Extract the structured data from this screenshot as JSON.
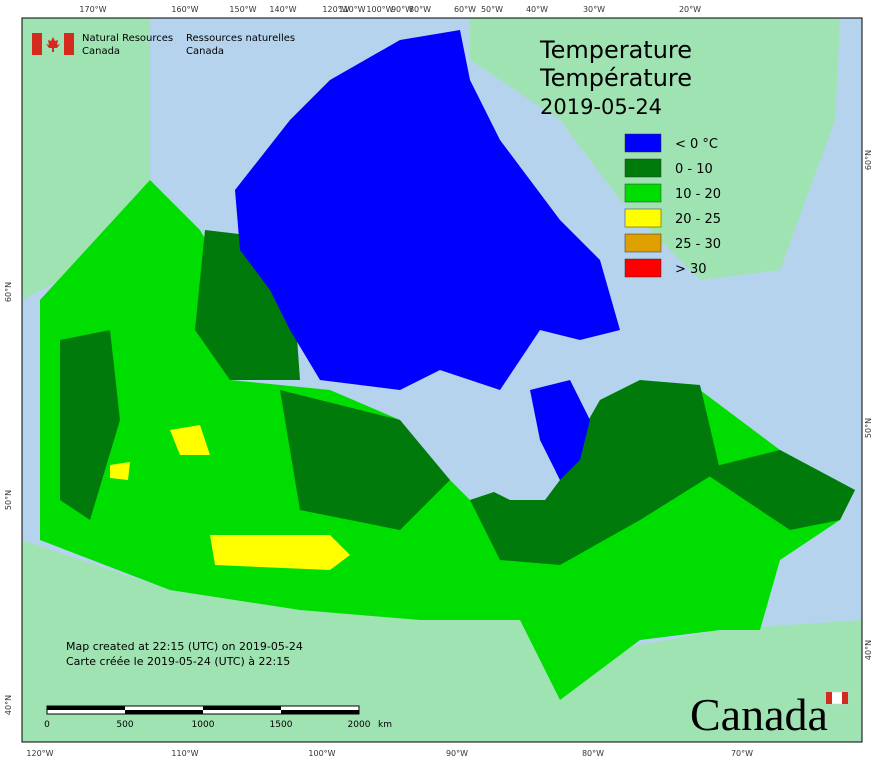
{
  "header": {
    "org_en_1": "Natural Resources",
    "org_en_2": "Canada",
    "org_fr_1": "Ressources naturelles",
    "org_fr_2": "Canada"
  },
  "title": {
    "en": "Temperature",
    "fr": "Température",
    "date": "2019-05-24"
  },
  "legend": [
    {
      "label": "< 0 °C",
      "color": "#0000ff"
    },
    {
      "label": "0 - 10",
      "color": "#007a0a"
    },
    {
      "label": "10 - 20",
      "color": "#00dd00"
    },
    {
      "label": "20 - 25",
      "color": "#ffff00"
    },
    {
      "label": "25 - 30",
      "color": "#dda000"
    },
    {
      "label": "> 30",
      "color": "#ff0000"
    }
  ],
  "top_labels": [
    "170°W",
    "160°W",
    "150°W",
    "140°W",
    "120°W",
    "110°W",
    "100°W",
    "90°W",
    "80°W",
    "60°W",
    "50°W",
    "40°W",
    "30°W",
    "20°W"
  ],
  "bottom_labels": [
    "120°W",
    "110°W",
    "100°W",
    "90°W",
    "80°W",
    "70°W"
  ],
  "left_labels": [
    "60°N",
    "50°N",
    "40°N"
  ],
  "right_labels": [
    "60°N",
    "50°N",
    "40°N"
  ],
  "footer": {
    "created_en": "Map created at 22:15 (UTC) on 2019-05-24",
    "created_fr": "Carte créée le 2019-05-24 (UTC) à 22:15"
  },
  "scale": {
    "labels": [
      "0",
      "500",
      "1000",
      "1500",
      "2000"
    ],
    "unit": "km"
  },
  "wordmark": "Canada"
}
